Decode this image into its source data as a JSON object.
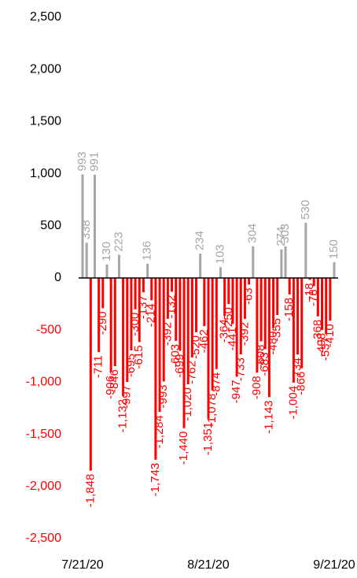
{
  "chart_data": {
    "type": "bar",
    "x": [
      "7/21/20",
      "7/22/20",
      "7/23/20",
      "7/24/20",
      "7/25/20",
      "7/26/20",
      "7/27/20",
      "7/28/20",
      "7/29/20",
      "7/30/20",
      "7/31/20",
      "8/1/20",
      "8/2/20",
      "8/3/20",
      "8/4/20",
      "8/5/20",
      "8/6/20",
      "8/7/20",
      "8/8/20",
      "8/9/20",
      "8/10/20",
      "8/11/20",
      "8/12/20",
      "8/13/20",
      "8/14/20",
      "8/15/20",
      "8/16/20",
      "8/17/20",
      "8/18/20",
      "8/19/20",
      "8/20/20",
      "8/21/20",
      "8/22/20",
      "8/23/20",
      "8/24/20",
      "8/25/20",
      "8/26/20",
      "8/27/20",
      "8/28/20",
      "8/29/20",
      "8/30/20",
      "8/31/20",
      "9/1/20",
      "9/2/20",
      "9/3/20",
      "9/4/20",
      "9/5/20",
      "9/6/20",
      "9/7/20",
      "9/8/20",
      "9/9/20",
      "9/10/20",
      "9/11/20",
      "9/12/20",
      "9/13/20",
      "9/14/20",
      "9/15/20",
      "9/16/20",
      "9/17/20",
      "9/18/20",
      "9/19/20",
      "9/20/20",
      "9/21/20"
    ],
    "values": [
      993,
      338,
      -1848,
      991,
      -711,
      -290,
      130,
      -906,
      -846,
      223,
      -1132,
      -997,
      -695,
      -300,
      -615,
      -137,
      136,
      -214,
      -1743,
      -1284,
      -993,
      -392,
      -132,
      -603,
      -699,
      -1440,
      -1020,
      -762,
      -520,
      234,
      -462,
      -1351,
      -1078,
      -874,
      103,
      -364,
      -250,
      -441,
      -947,
      -733,
      -392,
      -63,
      304,
      -908,
      -608,
      -683,
      -1143,
      -480,
      -355,
      274,
      303,
      -158,
      -1004,
      -734,
      -866,
      530,
      -18,
      -78,
      -368,
      -498,
      -537,
      -410,
      150
    ],
    "value_labels": [
      "993",
      "338",
      "-1,848",
      "991",
      "-711",
      "-290",
      "130",
      "-906",
      "-846",
      "223",
      "-1,132",
      "-997",
      "-695",
      "-300",
      "-615",
      "-137",
      "136",
      "-214",
      "-1,743",
      "-1,284",
      "-993",
      "-392",
      "-132",
      "-603",
      "-699",
      "-1,440",
      "-1,020",
      "-762",
      "-520",
      "234",
      "-462",
      "-1,351",
      "-1,078",
      "-874",
      "103",
      "-364",
      "-250",
      "-441",
      "-947",
      "-733",
      "-392",
      "-63",
      "304",
      "-908",
      "-608",
      "-683",
      "-1,143",
      "-480",
      "-355",
      "274",
      "303",
      "-158",
      "-1,004",
      "-734",
      "-866",
      "530",
      "-18",
      "-78",
      "-368",
      "-498",
      "-537",
      "-410",
      "150"
    ],
    "color": "#a6a6a6",
    "negative_color": "#ff0000",
    "ylim": [
      -2500,
      2500
    ],
    "yticks": [
      {
        "value": -2500,
        "label": "-2,500"
      },
      {
        "value": -2000,
        "label": "-2,000"
      },
      {
        "value": -1500,
        "label": "-1,500"
      },
      {
        "value": -1000,
        "label": "-1,000"
      },
      -500,
      0,
      500,
      {
        "value": 1000,
        "label": "1,000"
      },
      {
        "value": 1500,
        "label": "1,500"
      },
      {
        "value": 2000,
        "label": "2,000"
      },
      {
        "value": 2500,
        "label": "2,500"
      }
    ],
    "xticks": [
      "7/21/20",
      "8/21/20",
      "9/21/20"
    ],
    "grid": false
  }
}
